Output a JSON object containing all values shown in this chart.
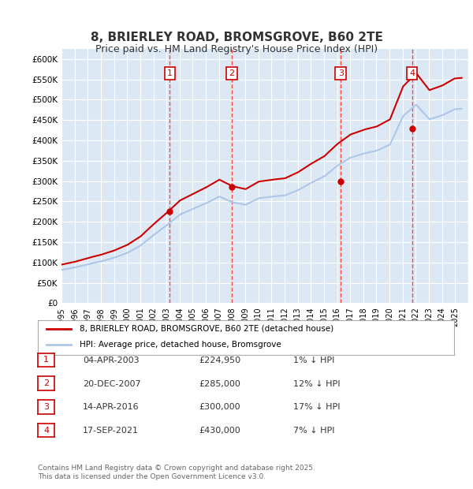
{
  "title": "8, BRIERLEY ROAD, BROMSGROVE, B60 2TE",
  "subtitle": "Price paid vs. HM Land Registry's House Price Index (HPI)",
  "ylabel": "",
  "ylim": [
    0,
    625000
  ],
  "yticks": [
    0,
    50000,
    100000,
    150000,
    200000,
    250000,
    300000,
    350000,
    400000,
    450000,
    500000,
    550000,
    600000
  ],
  "ytick_labels": [
    "£0",
    "£50K",
    "£100K",
    "£150K",
    "£200K",
    "£250K",
    "£300K",
    "£350K",
    "£400K",
    "£450K",
    "£500K",
    "£550K",
    "£600K"
  ],
  "hpi_color": "#aec6e8",
  "price_color": "#cc0000",
  "marker_color": "#cc0000",
  "vline_color": "#ff4444",
  "box_color": "#cc0000",
  "bg_chart": "#dce9f5",
  "bg_figure": "#ffffff",
  "grid_color": "#ffffff",
  "legend_label_price": "8, BRIERLEY ROAD, BROMSGROVE, B60 2TE (detached house)",
  "legend_label_hpi": "HPI: Average price, detached house, Bromsgrove",
  "sale_dates": [
    "2003-04-04",
    "2007-12-20",
    "2016-04-14",
    "2021-09-17"
  ],
  "sale_prices": [
    224950,
    285000,
    300000,
    430000
  ],
  "sale_numbers": [
    "1",
    "2",
    "3",
    "4"
  ],
  "table_dates": [
    "04-APR-2003",
    "20-DEC-2007",
    "14-APR-2016",
    "17-SEP-2021"
  ],
  "table_prices": [
    "£224,950",
    "£285,000",
    "£300,000",
    "£430,000"
  ],
  "table_pct": [
    "1% ↓ HPI",
    "12% ↓ HPI",
    "17% ↓ HPI",
    "7% ↓ HPI"
  ],
  "footnote": "Contains HM Land Registry data © Crown copyright and database right 2025.\nThis data is licensed under the Open Government Licence v3.0.",
  "hpi_years": [
    1995,
    1996,
    1997,
    1998,
    1999,
    2000,
    2001,
    2002,
    2003,
    2004,
    2005,
    2006,
    2007,
    2008,
    2009,
    2010,
    2011,
    2012,
    2013,
    2014,
    2015,
    2016,
    2017,
    2018,
    2019,
    2020,
    2021,
    2022,
    2023,
    2024,
    2025
  ],
  "hpi_values": [
    82000,
    88000,
    96000,
    103000,
    112000,
    124000,
    142000,
    168000,
    192000,
    218000,
    232000,
    246000,
    262000,
    248000,
    242000,
    258000,
    262000,
    265000,
    278000,
    296000,
    312000,
    338000,
    358000,
    368000,
    375000,
    390000,
    460000,
    488000,
    452000,
    462000,
    478000
  ]
}
